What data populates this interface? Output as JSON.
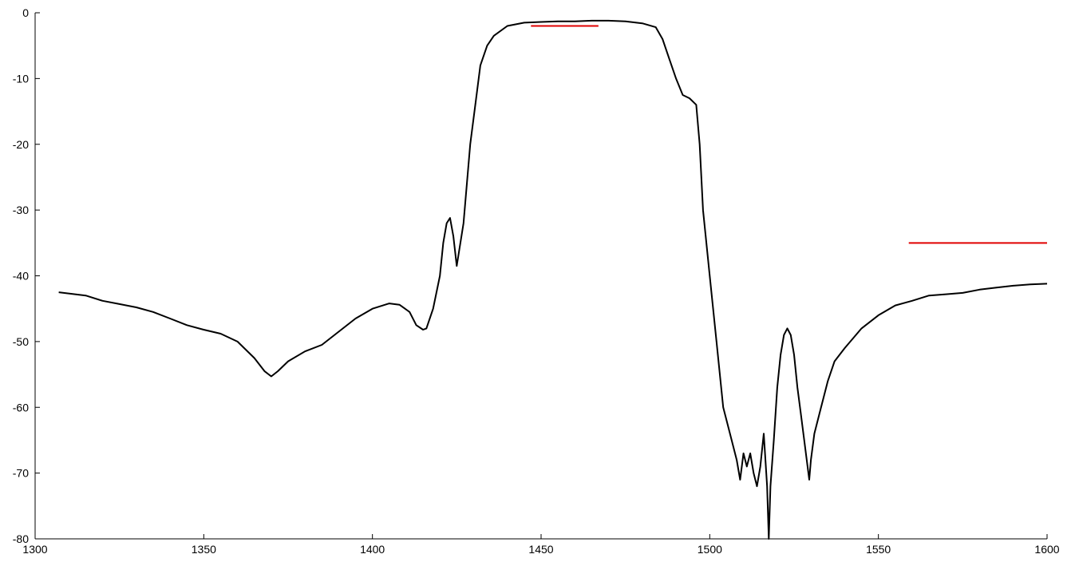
{
  "chart_data": {
    "type": "line",
    "title": "",
    "xlabel": "",
    "ylabel": "",
    "xlim": [
      1300,
      1600
    ],
    "ylim": [
      -80,
      0
    ],
    "x_ticks": [
      "1300",
      "1350",
      "1400",
      "1450",
      "1500",
      "1550",
      "1600"
    ],
    "y_ticks": [
      "0",
      "-10",
      "-20",
      "-30",
      "-40",
      "-50",
      "-60",
      "-70",
      "-80"
    ],
    "grid": false,
    "colors": {
      "series": "#000000",
      "limit": "#e00000",
      "axis": "#000000"
    },
    "series": [
      {
        "x": [
          1307,
          1315,
          1320,
          1325,
          1330,
          1335,
          1340,
          1345,
          1350,
          1355,
          1360,
          1365,
          1368,
          1370,
          1372,
          1375,
          1380,
          1385,
          1390,
          1395,
          1400,
          1405,
          1408,
          1411,
          1413,
          1415,
          1416,
          1418,
          1420,
          1421,
          1422,
          1423,
          1424,
          1425,
          1427,
          1429,
          1431,
          1432,
          1434,
          1436,
          1440,
          1445,
          1450,
          1455,
          1460,
          1465,
          1470,
          1475,
          1480,
          1484,
          1486,
          1488,
          1490,
          1492,
          1494,
          1496,
          1497,
          1498,
          1500,
          1502,
          1504,
          1506,
          1508,
          1509,
          1510,
          1511,
          1512,
          1513,
          1514,
          1515,
          1516,
          1517,
          1517.5,
          1518,
          1519,
          1520,
          1521,
          1522,
          1523,
          1524,
          1525,
          1526,
          1527,
          1528,
          1529,
          1529.5,
          1530,
          1531,
          1533,
          1535,
          1537,
          1540,
          1545,
          1550,
          1555,
          1560,
          1565,
          1570,
          1575,
          1580,
          1585,
          1590,
          1595,
          1600
        ],
        "y": [
          -42.5,
          -43,
          -43.8,
          -44.3,
          -44.8,
          -45.5,
          -46.5,
          -47.5,
          -48.2,
          -48.8,
          -50,
          -52.5,
          -54.5,
          -55.3,
          -54.5,
          -53,
          -51.5,
          -50.5,
          -48.5,
          -46.5,
          -45,
          -44.2,
          -44.4,
          -45.5,
          -47.5,
          -48.2,
          -48,
          -45,
          -40,
          -35,
          -32,
          -31.2,
          -34,
          -38.5,
          -32,
          -20,
          -12,
          -8,
          -5,
          -3.5,
          -2,
          -1.5,
          -1.4,
          -1.3,
          -1.3,
          -1.2,
          -1.2,
          -1.3,
          -1.6,
          -2.2,
          -4,
          -7,
          -10,
          -12.5,
          -13,
          -14,
          -20,
          -30,
          -40,
          -50,
          -60,
          -64,
          -68,
          -71,
          -67,
          -69,
          -67,
          -70,
          -72,
          -69,
          -64,
          -72,
          -80,
          -72,
          -65,
          -57,
          -52,
          -49,
          -48,
          -49,
          -52,
          -57,
          -61,
          -65,
          -69,
          -71,
          -68,
          -64,
          -60,
          -56,
          -53,
          -51,
          -48,
          -46,
          -44.5,
          -43.8,
          -43,
          -42.8,
          -42.6,
          -42.1,
          -41.8,
          -41.5,
          -41.3,
          -41.2
        ]
      }
    ],
    "limit_lines": [
      {
        "x": [
          1447,
          1467
        ],
        "y": -2
      },
      {
        "x": [
          1559,
          1600
        ],
        "y": -35
      }
    ]
  }
}
